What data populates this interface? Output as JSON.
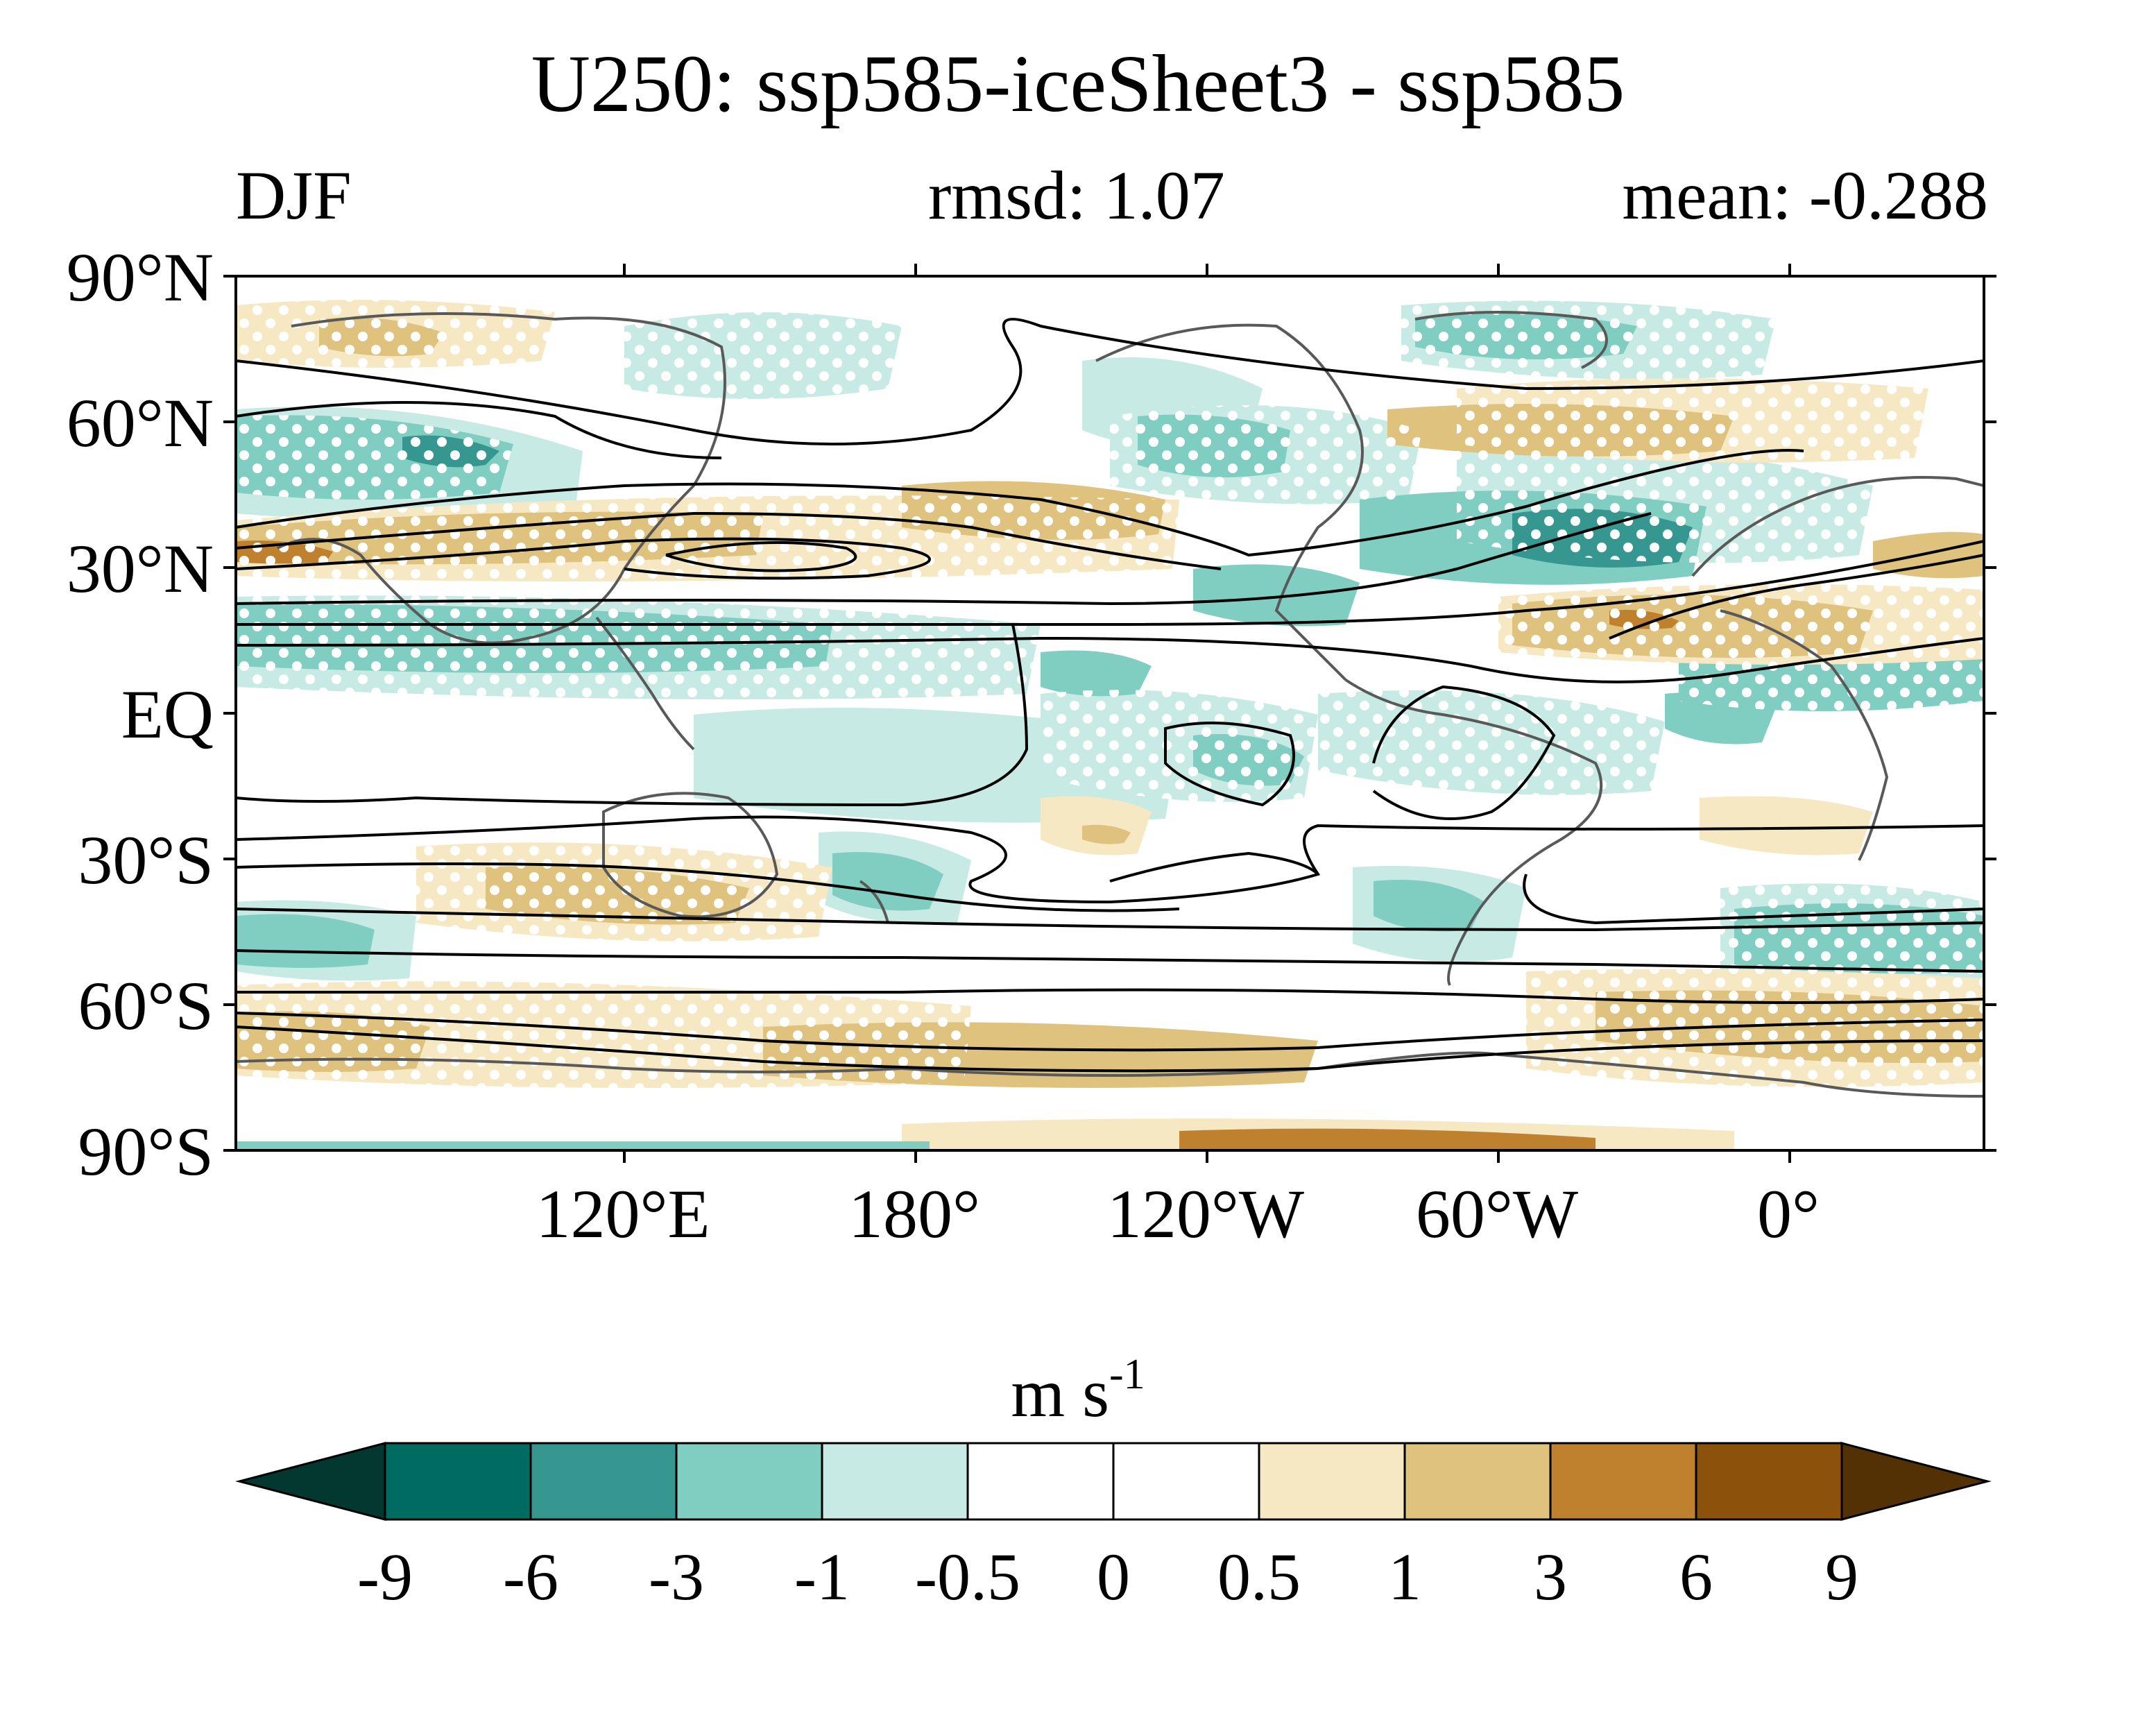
{
  "title": "U250: ssp585-iceSheet3 - ssp585",
  "left_label": "DJF",
  "center_label": "rmsd: 1.07",
  "right_label": "mean: -0.288",
  "lat_ticks": [
    "90°N",
    "60°N",
    "30°N",
    "EQ",
    "30°S",
    "60°S",
    "90°S"
  ],
  "lat_values": [
    90,
    60,
    30,
    0,
    -30,
    -60,
    -90
  ],
  "lon_ticks": [
    "120°E",
    "180°",
    "120°W",
    "60°W",
    "0°"
  ],
  "lon_values": [
    120,
    180,
    240,
    300,
    360
  ],
  "map_extent": {
    "lon_min": 40,
    "lon_max": 400,
    "lat_min": -90,
    "lat_max": 90
  },
  "colorbar": {
    "units": "m s",
    "units_exponent": "-1",
    "labels": [
      "-9",
      "-6",
      "-3",
      "-1",
      "-0.5",
      "0",
      "0.5",
      "1",
      "3",
      "6",
      "9"
    ],
    "colors": [
      "#02382f",
      "#006b61",
      "#35978f",
      "#80cdc1",
      "#c7eae5",
      "#ffffff",
      "#ffffff",
      "#f6e8c3",
      "#dfc27d",
      "#bf812d",
      "#8c510a",
      "#543005"
    ]
  },
  "colors": {
    "coastline": "#595959",
    "contour": "#000000",
    "stipple": "#ffffff"
  }
}
